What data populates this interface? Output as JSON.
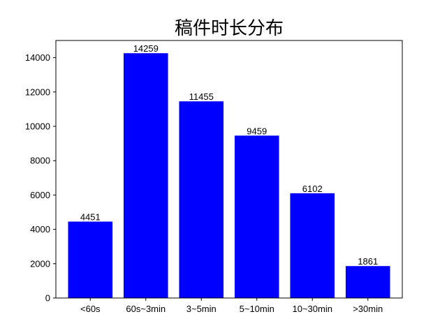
{
  "chart_data": {
    "type": "bar",
    "title": "稿件时长分布",
    "xlabel": "",
    "ylabel": "",
    "categories": [
      "<60s",
      "60s~3min",
      "3~5min",
      "5~10min",
      "10~30min",
      ">30min"
    ],
    "values": [
      4451,
      14259,
      11455,
      9459,
      6102,
      1861
    ],
    "ylim": [
      0,
      15000
    ],
    "yticks": [
      0,
      2000,
      4000,
      6000,
      8000,
      10000,
      12000,
      14000
    ],
    "bar_color": "#0000ff",
    "grid": false,
    "legend": false
  }
}
